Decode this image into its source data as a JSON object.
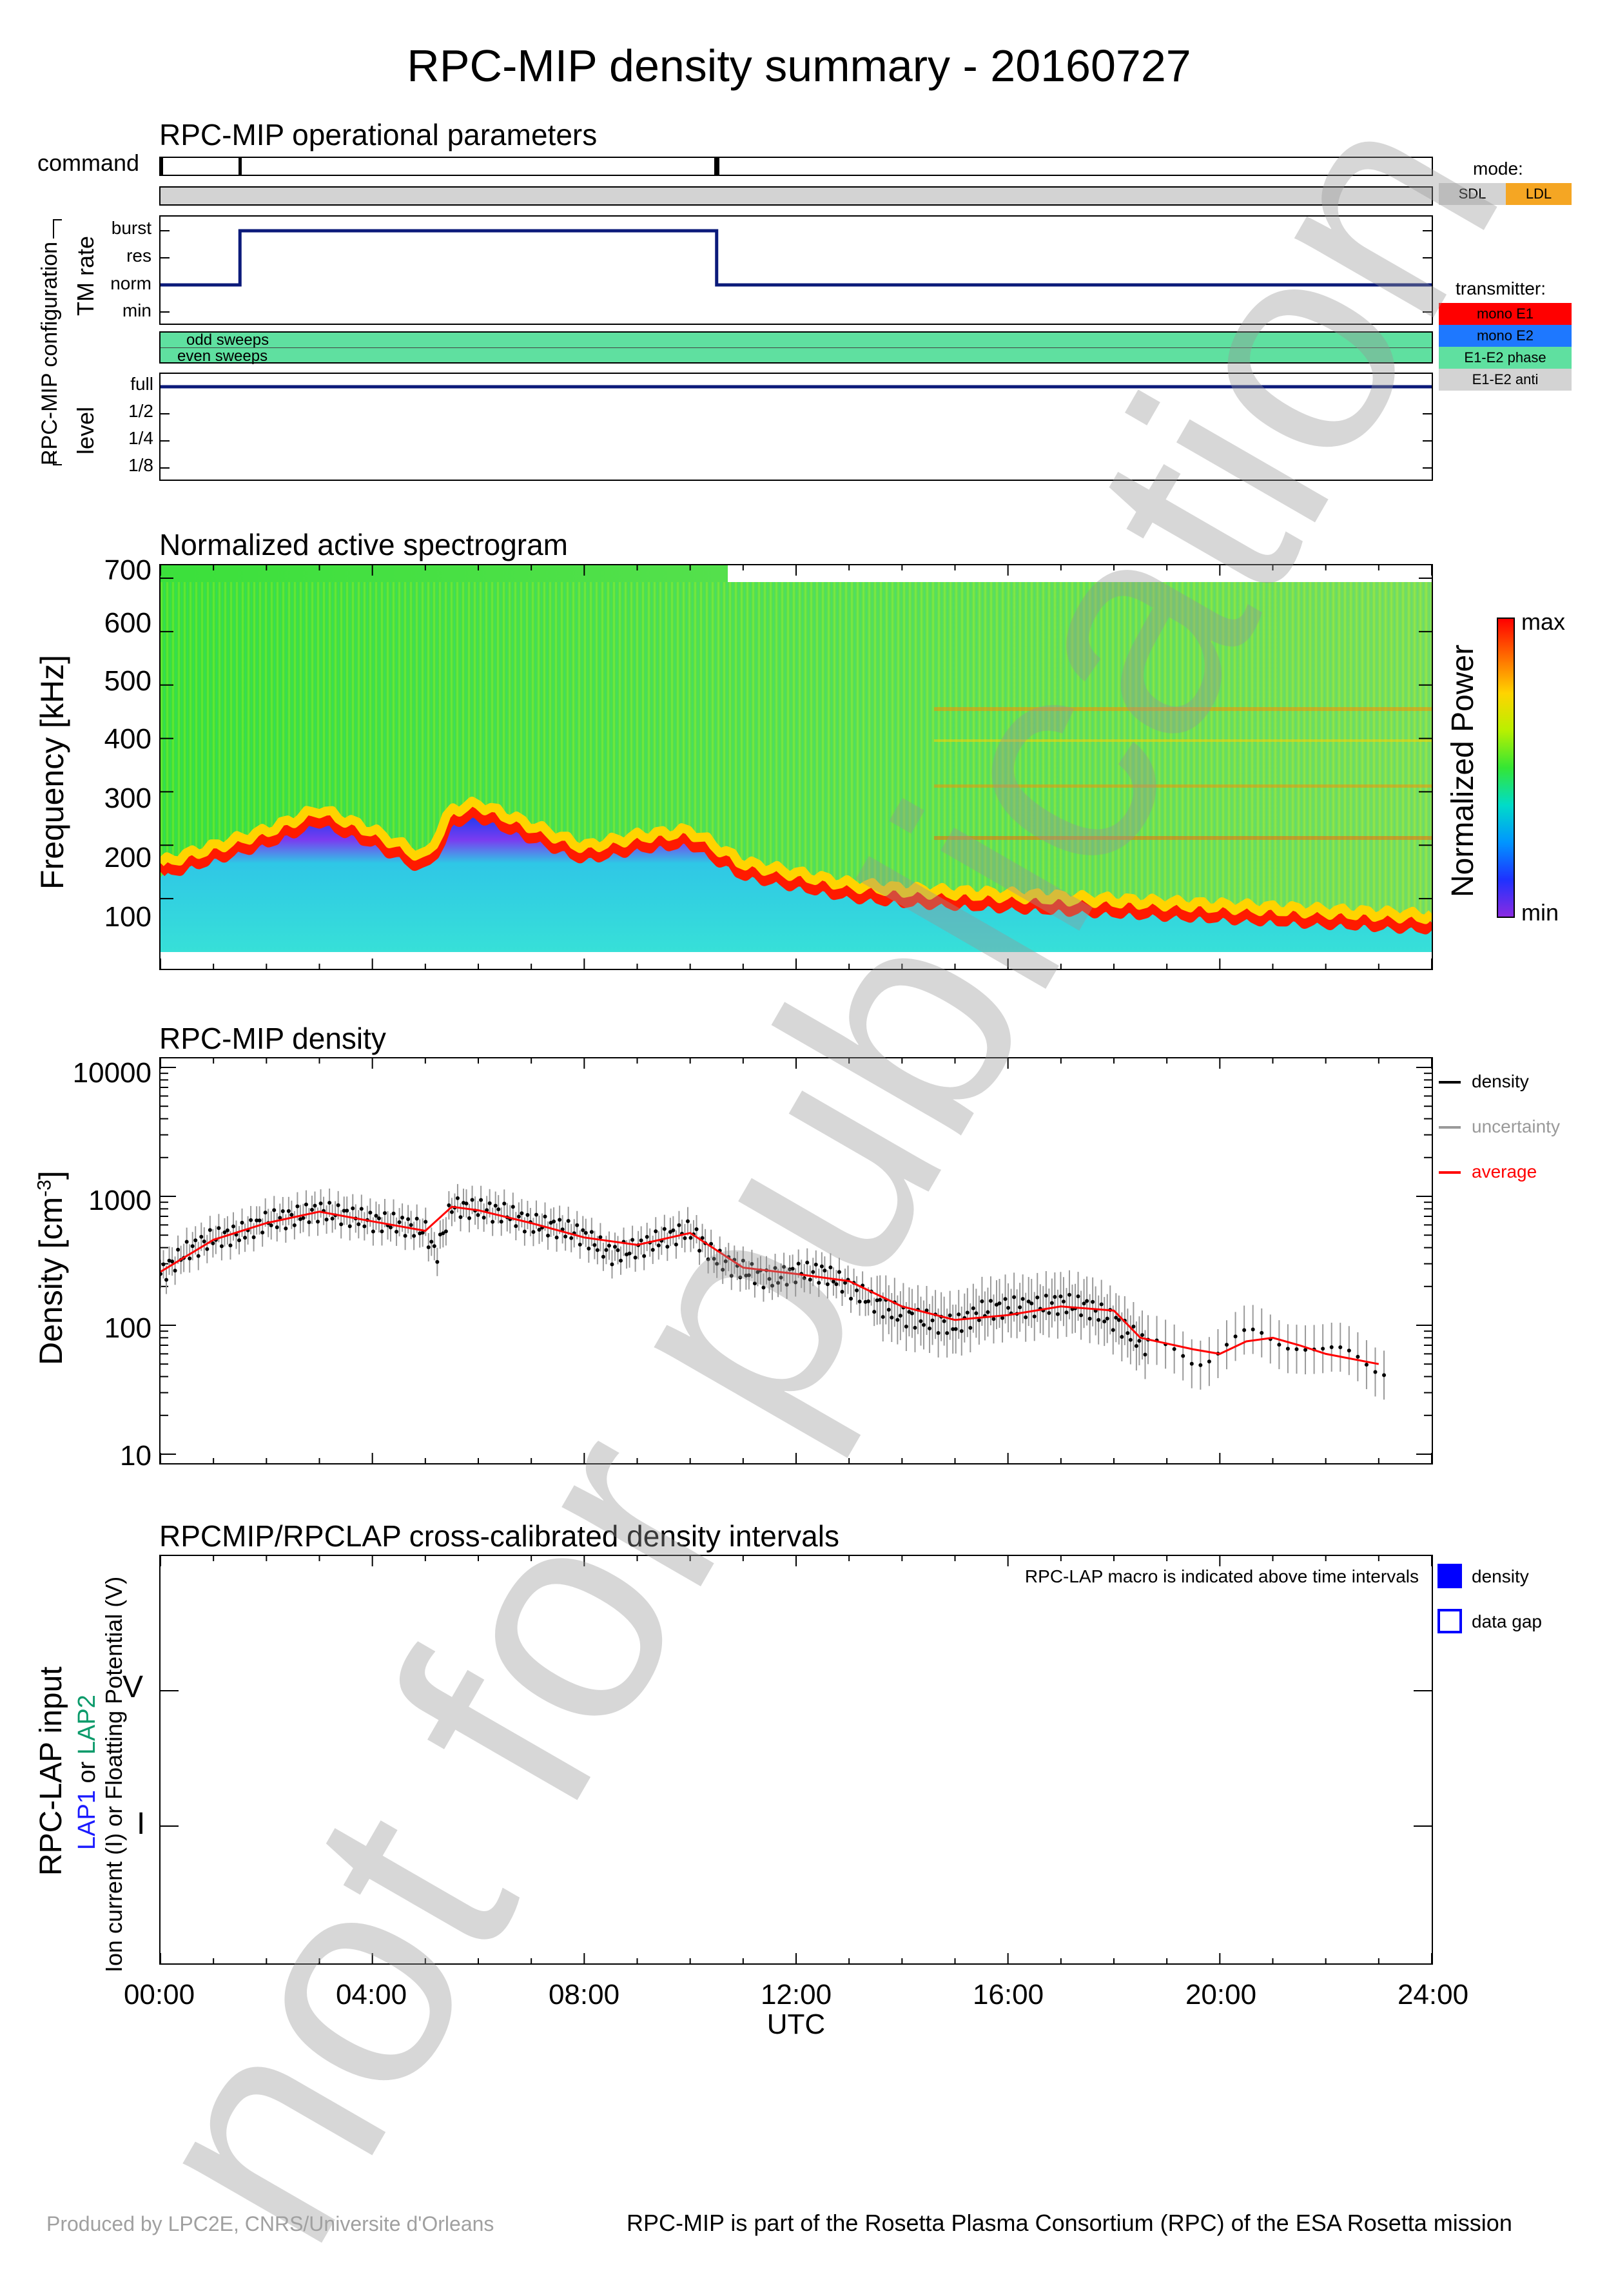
{
  "title": "RPC-MIP density summary - 20160727",
  "panel1": {
    "title": "RPC-MIP operational parameters",
    "command_label": "command",
    "group_label": "RPC-MIP configuration",
    "tm_label": "TM rate",
    "tm_levels": [
      "burst",
      "res",
      "norm",
      "min"
    ],
    "sweeps": [
      "odd sweeps",
      "even sweeps"
    ],
    "level_label": "level",
    "level_levels": [
      "full",
      "1/2",
      "1/4",
      "1/8"
    ],
    "mode_label": "mode:",
    "modes": [
      {
        "label": "SDL",
        "color": "#d3d3d3"
      },
      {
        "label": "LDL",
        "color": "#f5a623"
      }
    ],
    "transmitter_label": "transmitter:",
    "transmitters": [
      {
        "label": "mono E1",
        "color": "#ff0000"
      },
      {
        "label": "mono E2",
        "color": "#1e78ff"
      },
      {
        "label": "E1-E2 phase",
        "color": "#5fe0a0"
      },
      {
        "label": "E1-E2 anti",
        "color": "#d3d3d3"
      }
    ],
    "command_marks_h": [
      1.5,
      10.5
    ],
    "tm_steps": [
      {
        "from": 0,
        "to": 1.5,
        "level": "norm"
      },
      {
        "from": 1.5,
        "to": 10.5,
        "level": "burst"
      },
      {
        "from": 10.5,
        "to": 24,
        "level": "norm"
      }
    ],
    "level_value": "full"
  },
  "panel2": {
    "title": "Normalized active spectrogram",
    "ylabel": "Frequency [kHz]",
    "yticks": [
      "700",
      "600",
      "500",
      "400",
      "300",
      "200",
      "100"
    ],
    "colorbar_label": "Normalized Power",
    "colorbar_max": "max",
    "colorbar_min": "min"
  },
  "panel3": {
    "title": "RPC-MIP density",
    "ylabel_main": "Density [cm",
    "ylabel_sup": "-3",
    "ylabel_end": "]",
    "yticks": [
      "10000",
      "1000",
      "100",
      "10"
    ],
    "legend": [
      {
        "label": "density",
        "color": "#000000"
      },
      {
        "label": "uncertainty",
        "color": "#9a9a9a"
      },
      {
        "label": "average",
        "color": "#ff0000"
      }
    ]
  },
  "panel4": {
    "title": "RPCMIP/RPCLAP cross-calibrated density intervals",
    "note": "RPC-LAP macro is indicated above time intervals",
    "ylabel_input": "RPC-LAP input",
    "lap1": "LAP1",
    "or1": " or ",
    "lap2": "LAP2",
    "ylabel_sub": "Ion current (I) or Floatting Potential (V)",
    "levels": [
      "V",
      "I"
    ],
    "legend_density": "density",
    "legend_gap": "data gap"
  },
  "xaxis": {
    "ticks": [
      "00:00",
      "04:00",
      "08:00",
      "12:00",
      "16:00",
      "20:00",
      "24:00"
    ],
    "label": "UTC"
  },
  "watermark": "not for publication",
  "footer_left": "Produced by LPC2E, CNRS/Universite d'Orleans",
  "footer_right": "RPC-MIP is part of the Rosetta Plasma Consortium (RPC) of the ESA Rosetta mission",
  "chart_data": [
    {
      "type": "line",
      "title": "RPC-MIP operational parameters",
      "ylabel": "TM rate",
      "x_unit": "hours UTC",
      "series": [
        {
          "name": "TM rate",
          "x": [
            0,
            1.5,
            1.5,
            10.5,
            10.5,
            24
          ],
          "values": [
            "norm",
            "norm",
            "burst",
            "burst",
            "norm",
            "norm"
          ]
        }
      ]
    },
    {
      "type": "heatmap",
      "title": "Normalized active spectrogram",
      "xlabel": "UTC",
      "ylabel": "Frequency [kHz]",
      "ylim": [
        0,
        700
      ],
      "x": [
        0,
        1,
        2,
        3,
        4,
        5,
        5.5,
        6,
        7,
        8,
        9,
        10,
        11,
        12,
        13,
        14,
        15,
        16,
        17,
        18,
        19,
        20,
        21,
        22,
        23,
        24
      ],
      "plasma_line_khz": [
        150,
        180,
        210,
        250,
        210,
        160,
        250,
        260,
        220,
        180,
        200,
        210,
        150,
        130,
        110,
        100,
        95,
        90,
        85,
        80,
        75,
        70,
        65,
        60,
        55,
        50
      ]
    },
    {
      "type": "scatter",
      "title": "RPC-MIP density",
      "xlabel": "UTC",
      "ylabel": "Density [cm-3]",
      "yscale": "log",
      "ylim": [
        10,
        10000
      ],
      "xlim": [
        0,
        24
      ],
      "series": [
        {
          "name": "density",
          "x": [
            0,
            0.5,
            1,
            1.5,
            2,
            2.5,
            3,
            3.5,
            4,
            4.5,
            5,
            5.2,
            5.5,
            6,
            6.5,
            7,
            7.5,
            8,
            8.5,
            9,
            9.5,
            10,
            10.5,
            11,
            11.5,
            12,
            12.5,
            13,
            13.5,
            14,
            14.5,
            15,
            15.5,
            16,
            16.5,
            17,
            17.5,
            18,
            18.5,
            19,
            19.5,
            20,
            20.5,
            21,
            21.5,
            22,
            22.5,
            23
          ],
          "values": [
            250,
            380,
            480,
            520,
            650,
            700,
            780,
            720,
            650,
            620,
            550,
            350,
            850,
            800,
            750,
            620,
            580,
            500,
            360,
            400,
            480,
            550,
            330,
            270,
            230,
            260,
            260,
            200,
            150,
            120,
            110,
            100,
            130,
            140,
            140,
            150,
            140,
            110,
            75,
            60,
            55,
            70,
            80,
            75,
            80,
            60,
            55,
            50
          ]
        },
        {
          "name": "average",
          "x": [
            0,
            1,
            2,
            3,
            4,
            5,
            5.5,
            6,
            7,
            8,
            9,
            10,
            11,
            12,
            13,
            14,
            15,
            16,
            17,
            18,
            18.5,
            19.5,
            20,
            20.5,
            21,
            21.5,
            22,
            23
          ],
          "values": [
            260,
            460,
            620,
            760,
            640,
            540,
            830,
            780,
            620,
            480,
            420,
            520,
            280,
            250,
            220,
            140,
            110,
            120,
            140,
            130,
            80,
            65,
            60,
            75,
            80,
            70,
            60,
            50
          ]
        }
      ]
    }
  ]
}
